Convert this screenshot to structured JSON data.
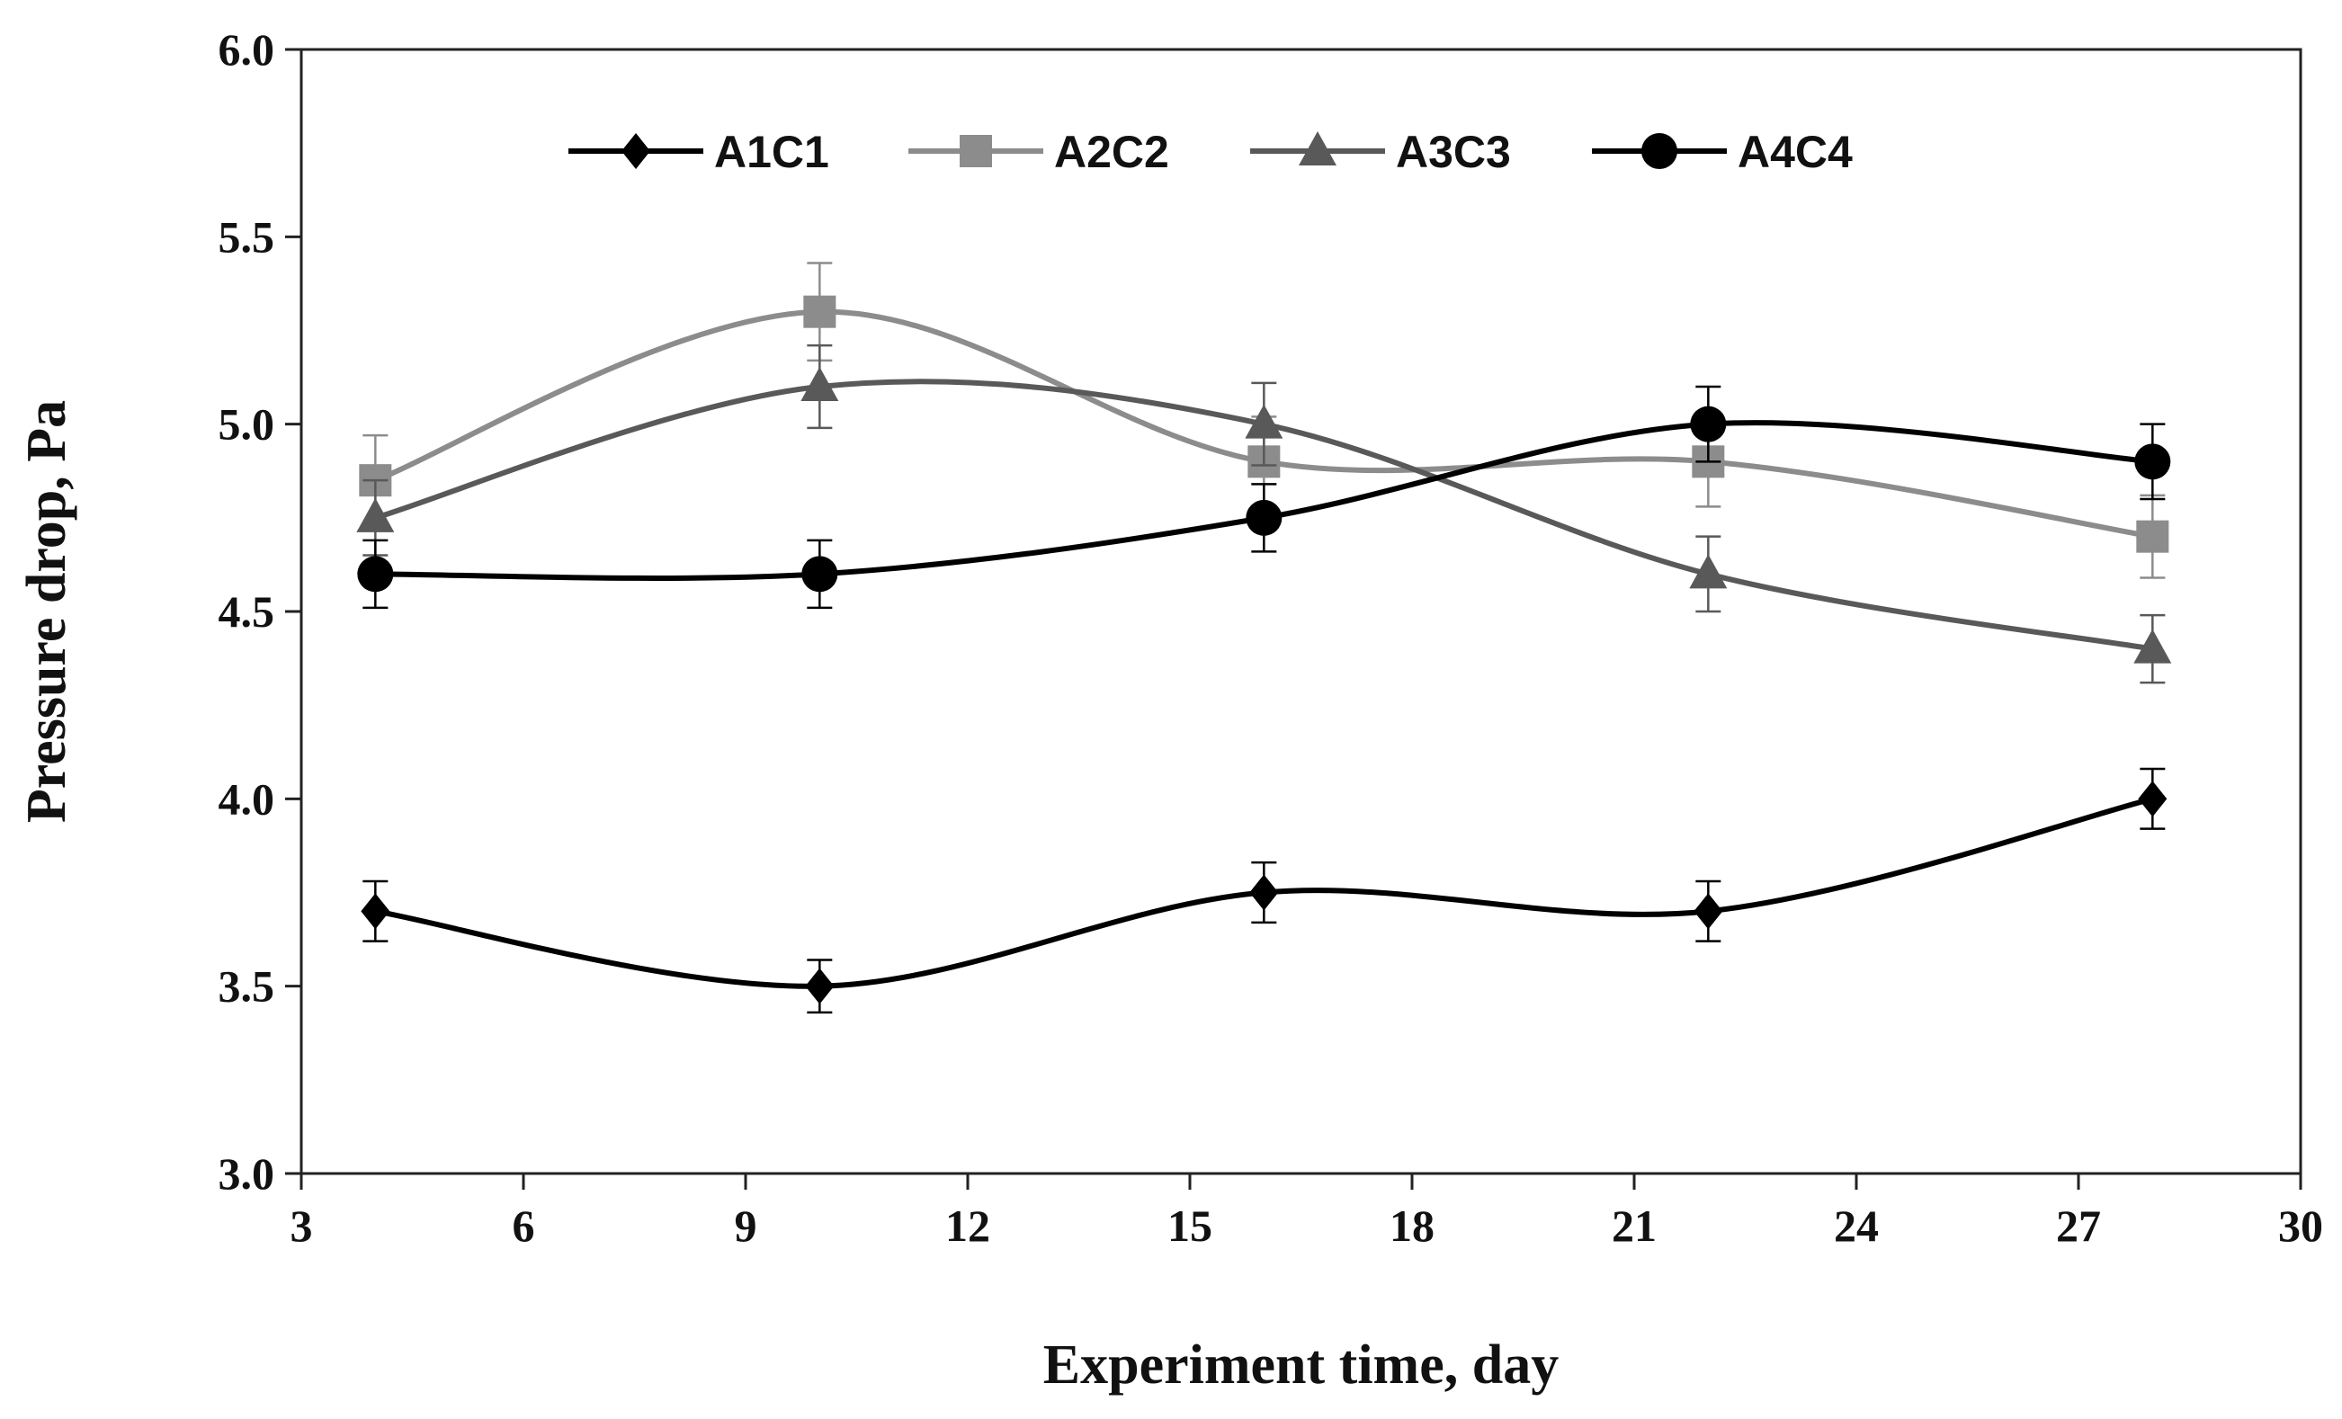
{
  "chart_data": {
    "type": "line",
    "title": "",
    "xlabel": "Experiment  time, day",
    "ylabel": "Pressure drop, Pa",
    "xlim": [
      3,
      30
    ],
    "ylim": [
      3.0,
      6.0
    ],
    "xticks": [
      "3",
      "6",
      "9",
      "12",
      "15",
      "18",
      "21",
      "24",
      "27",
      "30"
    ],
    "yticks": [
      "3.0",
      "3.5",
      "4.0",
      "4.5",
      "5.0",
      "5.5",
      "6.0"
    ],
    "grid": false,
    "smooth": true,
    "legend_position": "top",
    "x": [
      4,
      10,
      16,
      22,
      28
    ],
    "series": [
      {
        "name": "A1C1",
        "marker": "diamond",
        "color": "#000000",
        "values": [
          3.7,
          3.5,
          3.75,
          3.7,
          4.0
        ],
        "errors": [
          0.08,
          0.07,
          0.08,
          0.08,
          0.08
        ]
      },
      {
        "name": "A2C2",
        "marker": "square",
        "color": "#8c8c8c",
        "values": [
          4.85,
          5.3,
          4.9,
          4.9,
          4.7
        ],
        "errors": [
          0.12,
          0.13,
          0.12,
          0.12,
          0.11
        ]
      },
      {
        "name": "A3C3",
        "marker": "triangle",
        "color": "#595959",
        "values": [
          4.75,
          5.1,
          5.0,
          4.6,
          4.4
        ],
        "errors": [
          0.1,
          0.11,
          0.11,
          0.1,
          0.09
        ]
      },
      {
        "name": "A4C4",
        "marker": "circle",
        "color": "#000000",
        "values": [
          4.6,
          4.6,
          4.75,
          5.0,
          4.9
        ],
        "errors": [
          0.09,
          0.09,
          0.09,
          0.1,
          0.1
        ]
      }
    ]
  }
}
